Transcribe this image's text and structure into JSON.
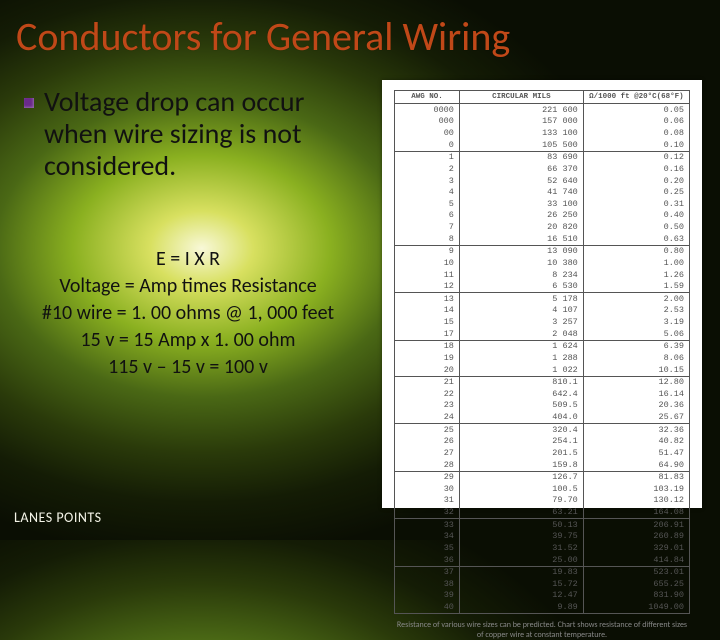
{
  "title": "Conductors for General Wiring",
  "bullet": "Voltage drop can occur when wire sizing is not considered.",
  "formula_lines": [
    "E = I X R",
    "Voltage = Amp times Resistance",
    "#10 wire = 1. 00 ohms @ 1, 000 feet",
    "15 v  = 15 Amp  x 1. 00 ohm",
    "115 v – 15 v = 100 v"
  ],
  "footer": "LANES POINTS",
  "table": {
    "headers": [
      "AWG\nNO.",
      "CIRCULAR\nMILS",
      "Ω/1000 ft\n@20°C(68°F)"
    ],
    "groups": [
      [
        [
          "0000",
          "221 600",
          "0.05"
        ],
        [
          "000",
          "157 000",
          "0.06"
        ],
        [
          "00",
          "133 100",
          "0.08"
        ],
        [
          "0",
          "105 500",
          "0.10"
        ]
      ],
      [
        [
          "1",
          "83 690",
          "0.12"
        ],
        [
          "2",
          "66 370",
          "0.16"
        ],
        [
          "3",
          "52 640",
          "0.20"
        ],
        [
          "4",
          "41 740",
          "0.25"
        ],
        [
          "5",
          "33 100",
          "0.31"
        ],
        [
          "6",
          "26 250",
          "0.40"
        ],
        [
          "7",
          "20 820",
          "0.50"
        ],
        [
          "8",
          "16 510",
          "0.63"
        ]
      ],
      [
        [
          "9",
          "13 090",
          "0.80"
        ],
        [
          "10",
          "10 380",
          "1.00"
        ],
        [
          "11",
          "8 234",
          "1.26"
        ],
        [
          "12",
          "6 530",
          "1.59"
        ]
      ],
      [
        [
          "13",
          "5 178",
          "2.00"
        ],
        [
          "14",
          "4 107",
          "2.53"
        ],
        [
          "15",
          "3 257",
          "3.19"
        ],
        [
          "17",
          "2 048",
          "5.06"
        ]
      ],
      [
        [
          "18",
          "1 624",
          "6.39"
        ],
        [
          "19",
          "1 288",
          "8.06"
        ],
        [
          "20",
          "1 022",
          "10.15"
        ]
      ],
      [
        [
          "21",
          "810.1",
          "12.80"
        ],
        [
          "22",
          "642.4",
          "16.14"
        ],
        [
          "23",
          "509.5",
          "20.36"
        ],
        [
          "24",
          "404.0",
          "25.67"
        ]
      ],
      [
        [
          "25",
          "320.4",
          "32.36"
        ],
        [
          "26",
          "254.1",
          "40.82"
        ],
        [
          "27",
          "201.5",
          "51.47"
        ],
        [
          "28",
          "159.8",
          "64.90"
        ]
      ],
      [
        [
          "29",
          "126.7",
          "81.83"
        ],
        [
          "30",
          "100.5",
          "103.19"
        ],
        [
          "31",
          "79.70",
          "130.12"
        ],
        [
          "32",
          "63.21",
          "164.08"
        ]
      ],
      [
        [
          "33",
          "50.13",
          "206.91"
        ],
        [
          "34",
          "39.75",
          "260.89"
        ],
        [
          "35",
          "31.52",
          "329.01"
        ],
        [
          "36",
          "25.00",
          "414.84"
        ]
      ],
      [
        [
          "37",
          "19.83",
          "523.01"
        ],
        [
          "38",
          "15.72",
          "655.25"
        ],
        [
          "39",
          "12.47",
          "831.90"
        ],
        [
          "40",
          "9.89",
          "1049.00"
        ]
      ]
    ],
    "caption": "Resistance of various wire sizes can be predicted. Chart shows resistance of different sizes of copper wire at constant temperature.",
    "col_widths": [
      "22%",
      "42%",
      "36%"
    ]
  },
  "styling": {
    "slide_size": [
      720,
      540
    ],
    "title_color": "#c04818",
    "title_fontsize": 40,
    "bullet_marker_color": "#6a2a8a",
    "bullet_fontsize": 28,
    "formula_fontsize": 20,
    "footer_color": "#f4f4e8",
    "table_bg": "#ffffff",
    "table_border": "#555555",
    "table_fontsize": 8.5,
    "background_gradient": [
      "#f8f8d8",
      "#d8e060",
      "#8ab020",
      "#4a6815",
      "#2a3a0a",
      "#141c05",
      "#0a0e03"
    ]
  }
}
